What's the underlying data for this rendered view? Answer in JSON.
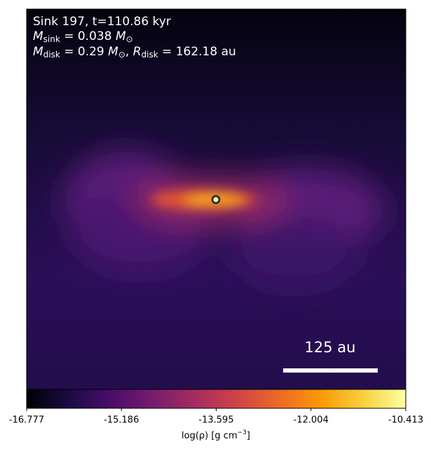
{
  "chart_data": {
    "type": "image",
    "annotations": [
      [
        "Sink 197, t=110.86 kyr"
      ],
      [
        "M",
        "sink",
        " = 0.038 ",
        "M",
        "⊙"
      ],
      [
        "M",
        "disk",
        " = 0.29 ",
        "M",
        "⊙",
        ", ",
        "R",
        "disk",
        " = 162.18 au"
      ]
    ],
    "scalebar_label": "125 au",
    "colorbar": {
      "label": [
        "log(ρ) [g cm",
        "−3",
        "]"
      ],
      "clim": [
        -16.777,
        -10.413
      ],
      "ticks": [
        -16.777,
        -15.186,
        -13.595,
        -12.004,
        -10.413
      ],
      "colormap": [
        "#000004",
        "#1b0c41",
        "#4a0c6b",
        "#781c6d",
        "#a52c60",
        "#cf4446",
        "#ed6925",
        "#fb9b06",
        "#f7d13d",
        "#fcffa4"
      ]
    }
  }
}
